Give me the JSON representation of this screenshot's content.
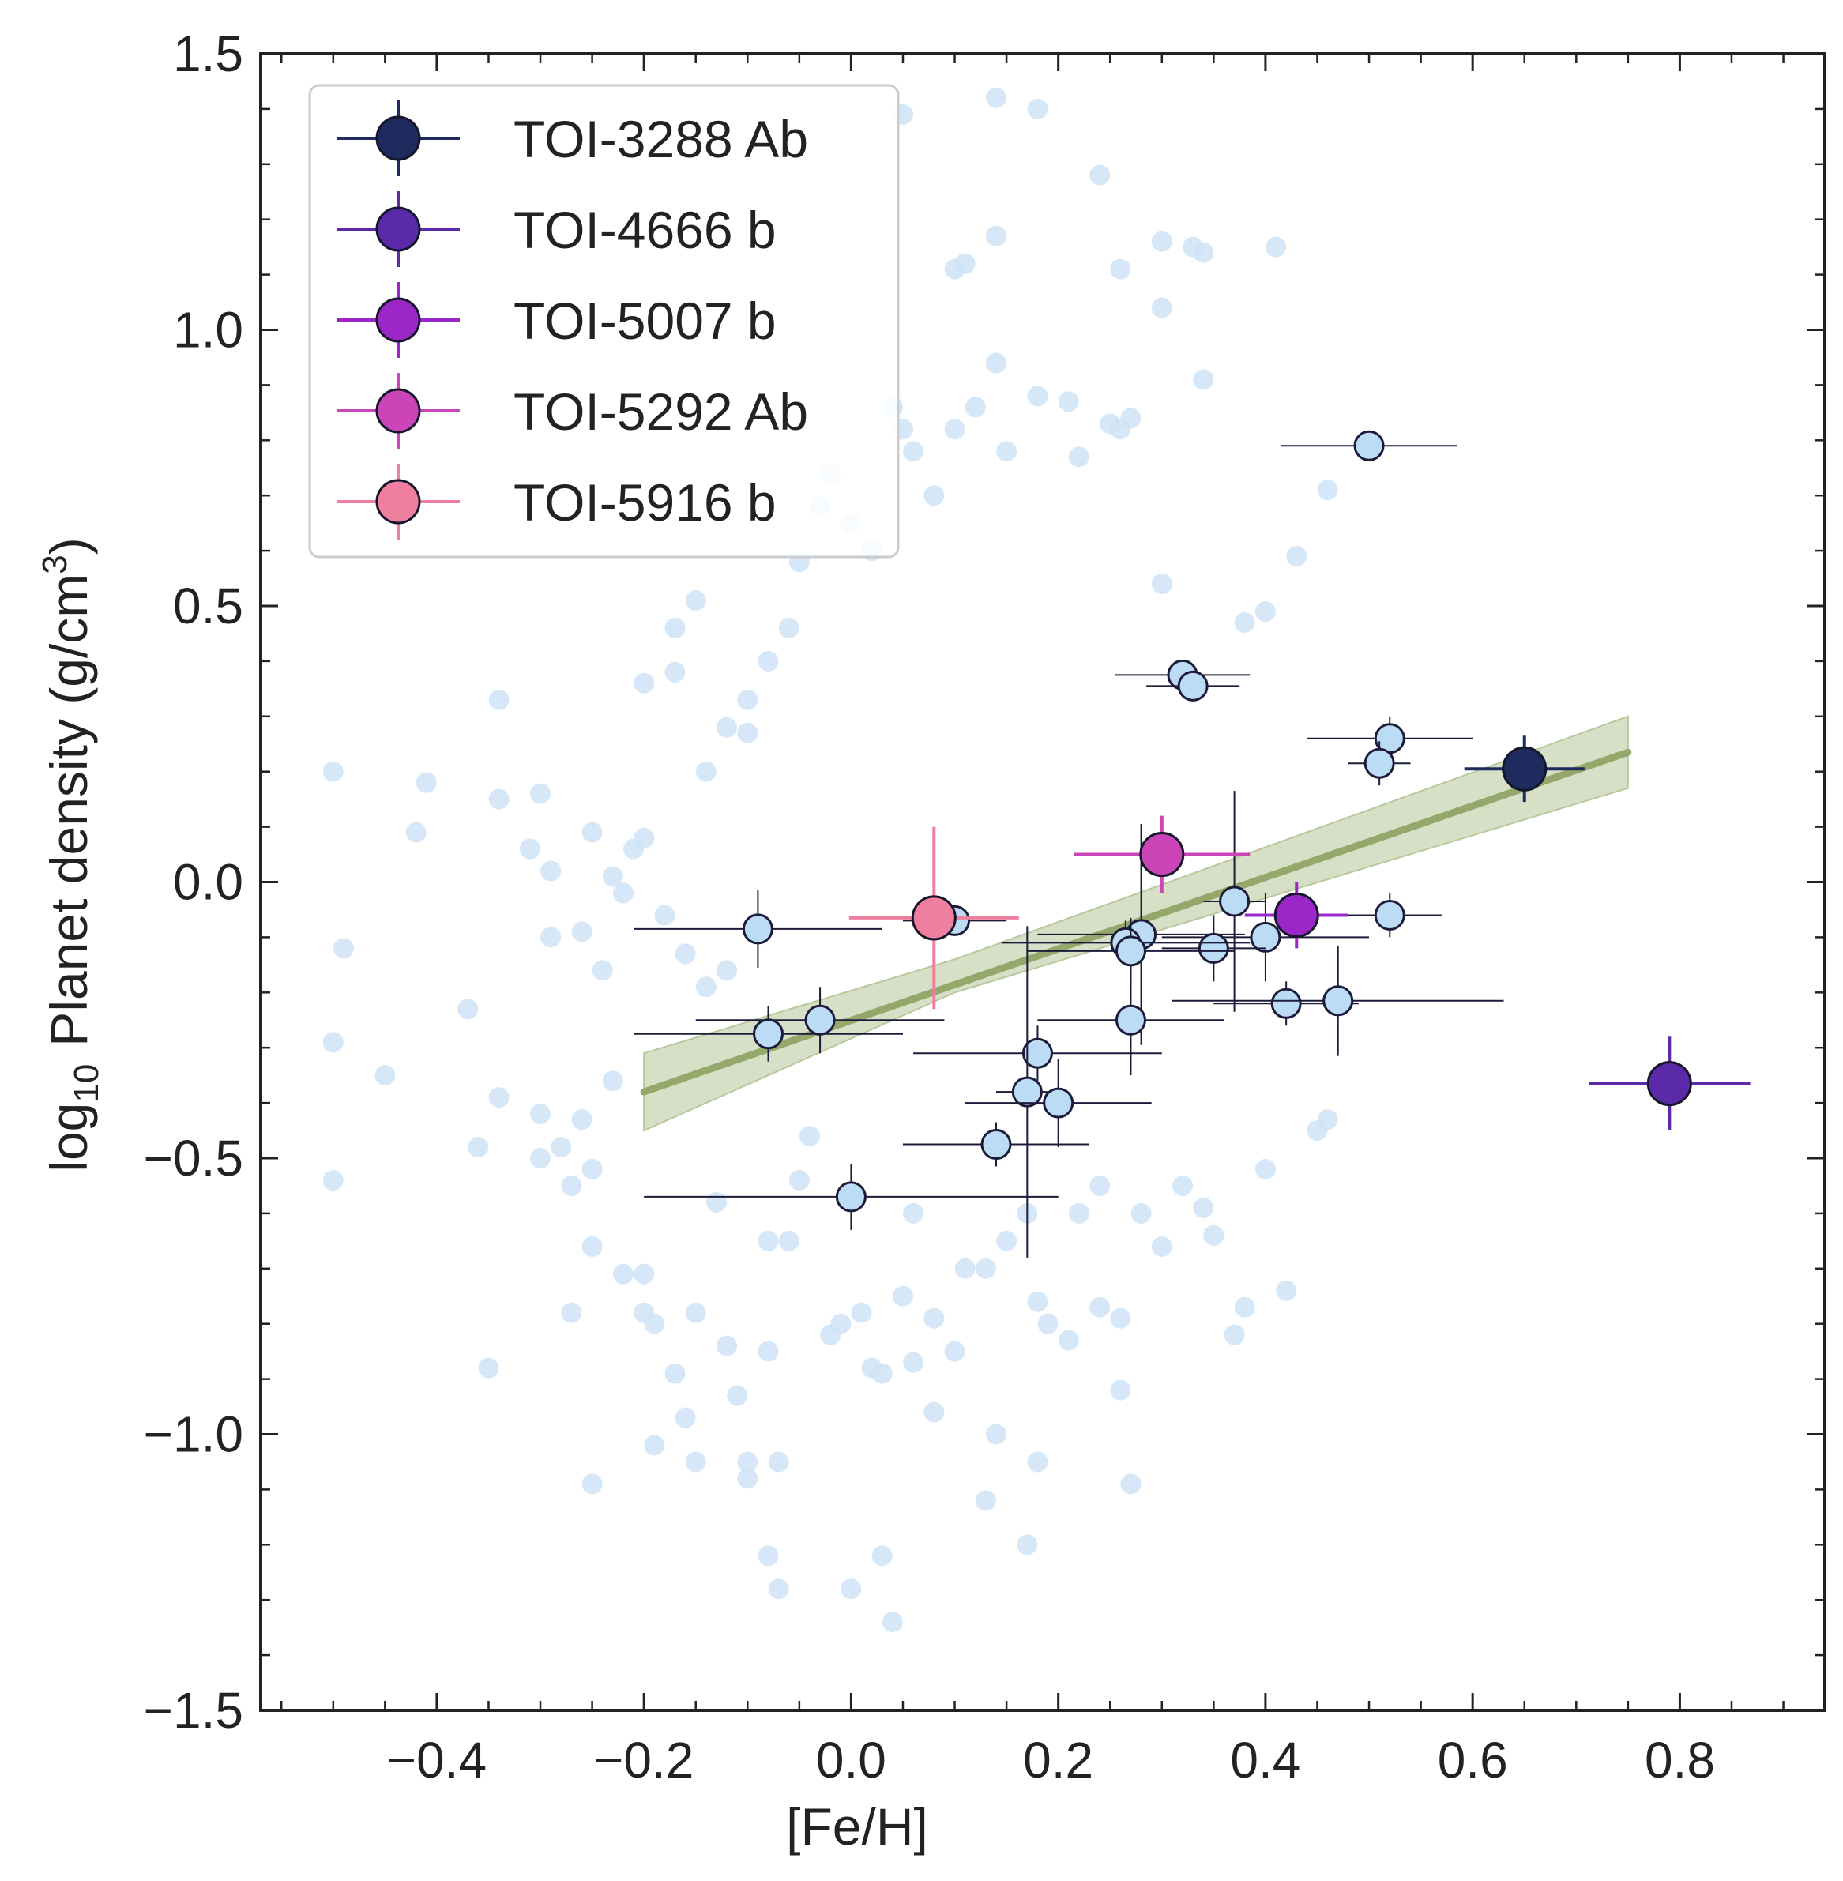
{
  "chart_data": {
    "type": "scatter",
    "title": "",
    "xlabel": "[Fe/H]",
    "ylabel_main": "Planet density (g/cm",
    "ylabel_prefix": "log",
    "ylabel_sub": "10",
    "ylabel_sup": "3",
    "ylabel_close": ")",
    "xlim": [
      -0.57,
      0.94
    ],
    "ylim": [
      -1.5,
      1.5
    ],
    "grid": false,
    "legend_position": "upper-left",
    "x_tick_labels": [
      "−0.4",
      "−0.2",
      "0.0",
      "0.2",
      "0.4",
      "0.6",
      "0.8"
    ],
    "x_tick_values": [
      -0.4,
      -0.2,
      0.0,
      0.2,
      0.4,
      0.6,
      0.8
    ],
    "y_tick_labels": [
      "−1.5",
      "−1.0",
      "−0.5",
      "0.0",
      "0.5",
      "1.0",
      "1.5"
    ],
    "y_tick_values": [
      -1.5,
      -1.0,
      -0.5,
      0.0,
      0.5,
      1.0,
      1.5
    ],
    "colors": {
      "background_points": "#cfe3f6",
      "sample_points": "#bcdcf5",
      "sample_edge": "#1c1c3a",
      "fit_line": "#93a86a",
      "fit_band": "#c9d5b4"
    },
    "highlighted": [
      {
        "name": "TOI-3288 Ab",
        "color": "#1e2b5e",
        "x": 0.65,
        "y": 0.205,
        "xerr": 0.058,
        "yerr": 0.06
      },
      {
        "name": "TOI-4666 b",
        "color": "#5b2aa8",
        "x": 0.79,
        "y": -0.365,
        "xerr": 0.078,
        "yerr": 0.085
      },
      {
        "name": "TOI-5007 b",
        "color": "#9b27c9",
        "x": 0.43,
        "y": -0.06,
        "xerr": 0.05,
        "yerr": 0.06
      },
      {
        "name": "TOI-5292 Ab",
        "color": "#cc45b8",
        "x": 0.3,
        "y": 0.05,
        "xerr": 0.085,
        "yerr": 0.07
      },
      {
        "name": "TOI-5916 b",
        "color": "#ee7f9f",
        "x": 0.08,
        "y": -0.065,
        "xerr": 0.082,
        "yerr": 0.165
      }
    ],
    "sample": [
      {
        "x": 0.5,
        "y": 0.79,
        "xerr": 0.085,
        "yerr": 0.0
      },
      {
        "x": 0.32,
        "y": 0.375,
        "xerr": 0.065,
        "yerr": 0.0
      },
      {
        "x": 0.33,
        "y": 0.355,
        "xerr": 0.045,
        "yerr": 0.0
      },
      {
        "x": 0.52,
        "y": 0.26,
        "xerr": 0.08,
        "yerr": 0.04
      },
      {
        "x": 0.51,
        "y": 0.215,
        "xerr": 0.03,
        "yerr": 0.04
      },
      {
        "x": 0.37,
        "y": -0.035,
        "xerr": 0.03,
        "yerr": 0.2
      },
      {
        "x": 0.52,
        "y": -0.06,
        "xerr": 0.05,
        "yerr": 0.04
      },
      {
        "x": 0.4,
        "y": -0.1,
        "xerr": 0.1,
        "yerr": 0.08
      },
      {
        "x": 0.35,
        "y": -0.12,
        "xerr": 0.05,
        "yerr": 0.06
      },
      {
        "x": 0.28,
        "y": -0.095,
        "xerr": 0.1,
        "yerr": 0.2
      },
      {
        "x": 0.265,
        "y": -0.11,
        "xerr": 0.12,
        "yerr": 0.04
      },
      {
        "x": 0.27,
        "y": -0.125,
        "xerr": 0.1,
        "yerr": 0.06
      },
      {
        "x": -0.09,
        "y": -0.085,
        "xerr": 0.12,
        "yerr": 0.07
      },
      {
        "x": 0.1,
        "y": -0.07,
        "xerr": 0.05,
        "yerr": 0.0
      },
      {
        "x": 0.42,
        "y": -0.22,
        "xerr": 0.07,
        "yerr": 0.04
      },
      {
        "x": 0.47,
        "y": -0.215,
        "xerr": 0.16,
        "yerr": 0.1
      },
      {
        "x": -0.03,
        "y": -0.25,
        "xerr": 0.12,
        "yerr": 0.06
      },
      {
        "x": -0.08,
        "y": -0.275,
        "xerr": 0.13,
        "yerr": 0.05
      },
      {
        "x": 0.27,
        "y": -0.25,
        "xerr": 0.09,
        "yerr": 0.1
      },
      {
        "x": 0.18,
        "y": -0.31,
        "xerr": 0.12,
        "yerr": 0.05
      },
      {
        "x": 0.17,
        "y": -0.38,
        "xerr": 0.03,
        "yerr": 0.3
      },
      {
        "x": 0.2,
        "y": -0.4,
        "xerr": 0.09,
        "yerr": 0.08
      },
      {
        "x": 0.14,
        "y": -0.475,
        "xerr": 0.09,
        "yerr": 0.04
      },
      {
        "x": 0.0,
        "y": -0.57,
        "xerr": 0.2,
        "yerr": 0.06
      }
    ],
    "background": [
      [
        -0.5,
        0.2
      ],
      [
        -0.41,
        0.18
      ],
      [
        -0.42,
        0.09
      ],
      [
        -0.34,
        0.33
      ],
      [
        -0.34,
        0.15
      ],
      [
        -0.3,
        0.16
      ],
      [
        -0.31,
        0.06
      ],
      [
        -0.29,
        0.02
      ],
      [
        -0.25,
        0.09
      ],
      [
        -0.26,
        -0.09
      ],
      [
        -0.23,
        0.01
      ],
      [
        -0.2,
        0.08
      ],
      [
        -0.2,
        0.36
      ],
      [
        -0.17,
        0.46
      ],
      [
        -0.17,
        0.38
      ],
      [
        -0.15,
        0.51
      ],
      [
        -0.14,
        0.2
      ],
      [
        -0.12,
        0.28
      ],
      [
        -0.1,
        0.27
      ],
      [
        -0.1,
        0.33
      ],
      [
        -0.08,
        0.4
      ],
      [
        -0.06,
        0.46
      ],
      [
        -0.05,
        0.58
      ],
      [
        -0.03,
        0.68
      ],
      [
        -0.02,
        0.74
      ],
      [
        0.0,
        0.65
      ],
      [
        0.02,
        0.6
      ],
      [
        0.04,
        0.86
      ],
      [
        0.05,
        0.82
      ],
      [
        0.06,
        0.78
      ],
      [
        0.08,
        0.7
      ],
      [
        0.1,
        0.82
      ],
      [
        0.12,
        0.86
      ],
      [
        0.14,
        0.94
      ],
      [
        0.15,
        0.78
      ],
      [
        0.18,
        0.88
      ],
      [
        0.21,
        0.87
      ],
      [
        0.22,
        0.77
      ],
      [
        0.25,
        0.83
      ],
      [
        0.26,
        0.82
      ],
      [
        0.27,
        0.84
      ],
      [
        0.11,
        1.12
      ],
      [
        0.14,
        1.17
      ],
      [
        0.1,
        1.11
      ],
      [
        0.24,
        1.28
      ],
      [
        0.26,
        1.11
      ],
      [
        0.3,
        1.16
      ],
      [
        0.33,
        1.15
      ],
      [
        0.34,
        1.14
      ],
      [
        0.41,
        1.15
      ],
      [
        0.14,
        1.42
      ],
      [
        0.18,
        1.4
      ],
      [
        0.05,
        1.39
      ],
      [
        0.3,
        1.04
      ],
      [
        0.34,
        0.91
      ],
      [
        0.46,
        0.71
      ],
      [
        0.43,
        0.59
      ],
      [
        0.4,
        0.49
      ],
      [
        0.38,
        0.47
      ],
      [
        0.3,
        0.54
      ],
      [
        -0.49,
        -0.12
      ],
      [
        -0.5,
        -0.29
      ],
      [
        -0.5,
        -0.54
      ],
      [
        -0.45,
        -0.35
      ],
      [
        -0.37,
        -0.23
      ],
      [
        -0.36,
        -0.48
      ],
      [
        -0.34,
        -0.39
      ],
      [
        -0.3,
        -0.42
      ],
      [
        -0.3,
        -0.5
      ],
      [
        -0.29,
        -0.1
      ],
      [
        -0.27,
        -0.55
      ],
      [
        -0.26,
        -0.43
      ],
      [
        -0.25,
        -0.52
      ],
      [
        -0.25,
        -0.66
      ],
      [
        -0.23,
        -0.36
      ],
      [
        -0.22,
        -0.71
      ],
      [
        -0.2,
        -0.71
      ],
      [
        -0.2,
        -0.78
      ],
      [
        -0.19,
        -0.8
      ],
      [
        -0.19,
        -1.02
      ],
      [
        -0.17,
        -0.89
      ],
      [
        -0.16,
        -0.97
      ],
      [
        -0.15,
        -1.05
      ],
      [
        -0.13,
        -0.58
      ],
      [
        -0.12,
        -0.84
      ],
      [
        -0.11,
        -0.93
      ],
      [
        -0.1,
        -1.05
      ],
      [
        -0.1,
        -1.08
      ],
      [
        -0.08,
        -0.85
      ],
      [
        -0.07,
        -1.05
      ],
      [
        -0.06,
        -0.65
      ],
      [
        -0.05,
        -0.54
      ],
      [
        -0.04,
        -0.46
      ],
      [
        -0.02,
        -0.82
      ],
      [
        -0.01,
        -0.8
      ],
      [
        0.01,
        -0.78
      ],
      [
        0.02,
        -0.88
      ],
      [
        0.03,
        -0.89
      ],
      [
        0.05,
        -0.75
      ],
      [
        0.06,
        -0.87
      ],
      [
        0.08,
        -0.79
      ],
      [
        0.1,
        -0.85
      ],
      [
        0.13,
        -0.7
      ],
      [
        0.15,
        -0.65
      ],
      [
        0.17,
        -0.6
      ],
      [
        0.18,
        -0.76
      ],
      [
        0.19,
        -0.8
      ],
      [
        0.21,
        -0.83
      ],
      [
        0.24,
        -0.77
      ],
      [
        0.26,
        -0.79
      ],
      [
        0.3,
        -0.66
      ],
      [
        0.32,
        -0.55
      ],
      [
        0.34,
        -0.59
      ],
      [
        0.35,
        -0.64
      ],
      [
        0.37,
        -0.82
      ],
      [
        0.38,
        -0.77
      ],
      [
        0.4,
        -0.52
      ],
      [
        0.42,
        -0.74
      ],
      [
        0.45,
        -0.45
      ],
      [
        0.46,
        -0.43
      ],
      [
        -0.35,
        -0.88
      ],
      [
        -0.27,
        -0.78
      ],
      [
        -0.28,
        -0.48
      ],
      [
        -0.24,
        -0.16
      ],
      [
        -0.22,
        -0.02
      ],
      [
        -0.21,
        0.06
      ],
      [
        -0.18,
        -0.06
      ],
      [
        -0.16,
        -0.13
      ],
      [
        -0.14,
        -0.19
      ],
      [
        -0.12,
        -0.16
      ],
      [
        0.0,
        -1.28
      ],
      [
        -0.07,
        -1.28
      ],
      [
        -0.08,
        -1.22
      ],
      [
        0.04,
        -1.34
      ],
      [
        0.03,
        -1.22
      ],
      [
        0.13,
        -1.12
      ],
      [
        0.17,
        -1.2
      ],
      [
        0.27,
        -1.09
      ],
      [
        0.18,
        -1.05
      ],
      [
        0.26,
        -0.92
      ],
      [
        0.08,
        -0.96
      ],
      [
        0.14,
        -1.0
      ],
      [
        -0.25,
        -1.09
      ],
      [
        -0.15,
        -0.78
      ],
      [
        -0.08,
        -0.65
      ],
      [
        0.22,
        -0.6
      ],
      [
        0.24,
        -0.55
      ],
      [
        0.28,
        -0.6
      ],
      [
        0.06,
        -0.6
      ],
      [
        0.11,
        -0.7
      ]
    ],
    "fit": {
      "x_start": -0.2,
      "x_end": 0.75,
      "y_start": -0.38,
      "y_end": 0.235,
      "band_lower": [
        [
          -0.2,
          -0.45
        ],
        [
          0.1,
          -0.2
        ],
        [
          0.75,
          0.17
        ]
      ],
      "band_upper": [
        [
          -0.2,
          -0.31
        ],
        [
          0.1,
          -0.14
        ],
        [
          0.75,
          0.3
        ]
      ]
    }
  }
}
